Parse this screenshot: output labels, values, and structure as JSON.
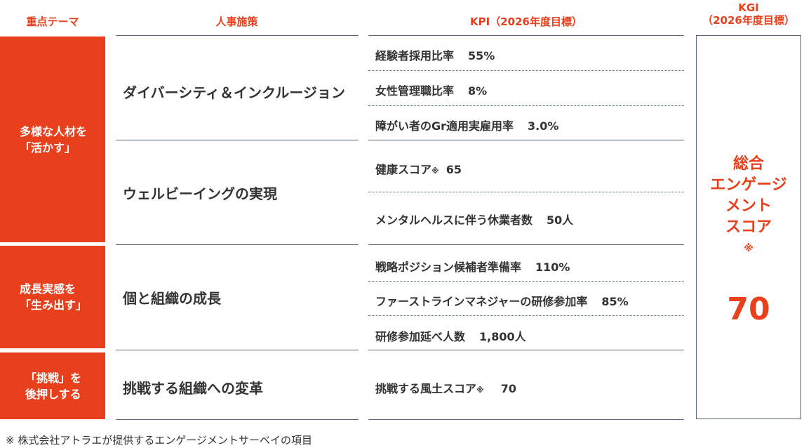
{
  "headers": {
    "theme": "重点テーマ",
    "policy": "人事施策",
    "kpi": "KPI（2026年度目標）",
    "kgi_line1": "KGI",
    "kgi_line2": "（2026年度目標）"
  },
  "themes": [
    {
      "label": "多様な人材を\n「活かす」"
    },
    {
      "label": "成長実感を\n「生み出す」"
    },
    {
      "label": "「挑戦」を\n後押しする"
    }
  ],
  "policies": [
    {
      "label": "ダイバーシティ＆インクルージョン"
    },
    {
      "label": "ウェルビーイングの実現"
    },
    {
      "label": "個と組織の成長"
    },
    {
      "label": "挑戦する組織への変革"
    }
  ],
  "kpis": [
    {
      "name": "経験者採用比率",
      "value": "55%"
    },
    {
      "name": "女性管理職比率",
      "value": "8%"
    },
    {
      "name": "障がい者のGr適用実雇用率",
      "value": "3.0%"
    },
    {
      "name": "健康スコア",
      "mark": "※",
      "value": "65"
    },
    {
      "name": "メンタルヘルスに伴う休業者数",
      "value": "50人"
    },
    {
      "name": "戦略ポジション候補者準備率",
      "value": "110%"
    },
    {
      "name": "ファーストラインマネジャーの研修参加率",
      "value": "85%"
    },
    {
      "name": "研修参加延べ人数",
      "value": "1,800人"
    },
    {
      "name": "挑戦する風土スコア",
      "mark": "※",
      "value": "70"
    }
  ],
  "kgi": {
    "name_lines": [
      "総合",
      "エンゲージ",
      "メント",
      "スコア"
    ],
    "mark": "※",
    "value": "70"
  },
  "footnote": "※ 株式会社アトラエが提供するエンゲージメントサーベイの項目",
  "colors": {
    "accent": "#e8401c",
    "rule": "#58627a",
    "text": "#333333"
  }
}
